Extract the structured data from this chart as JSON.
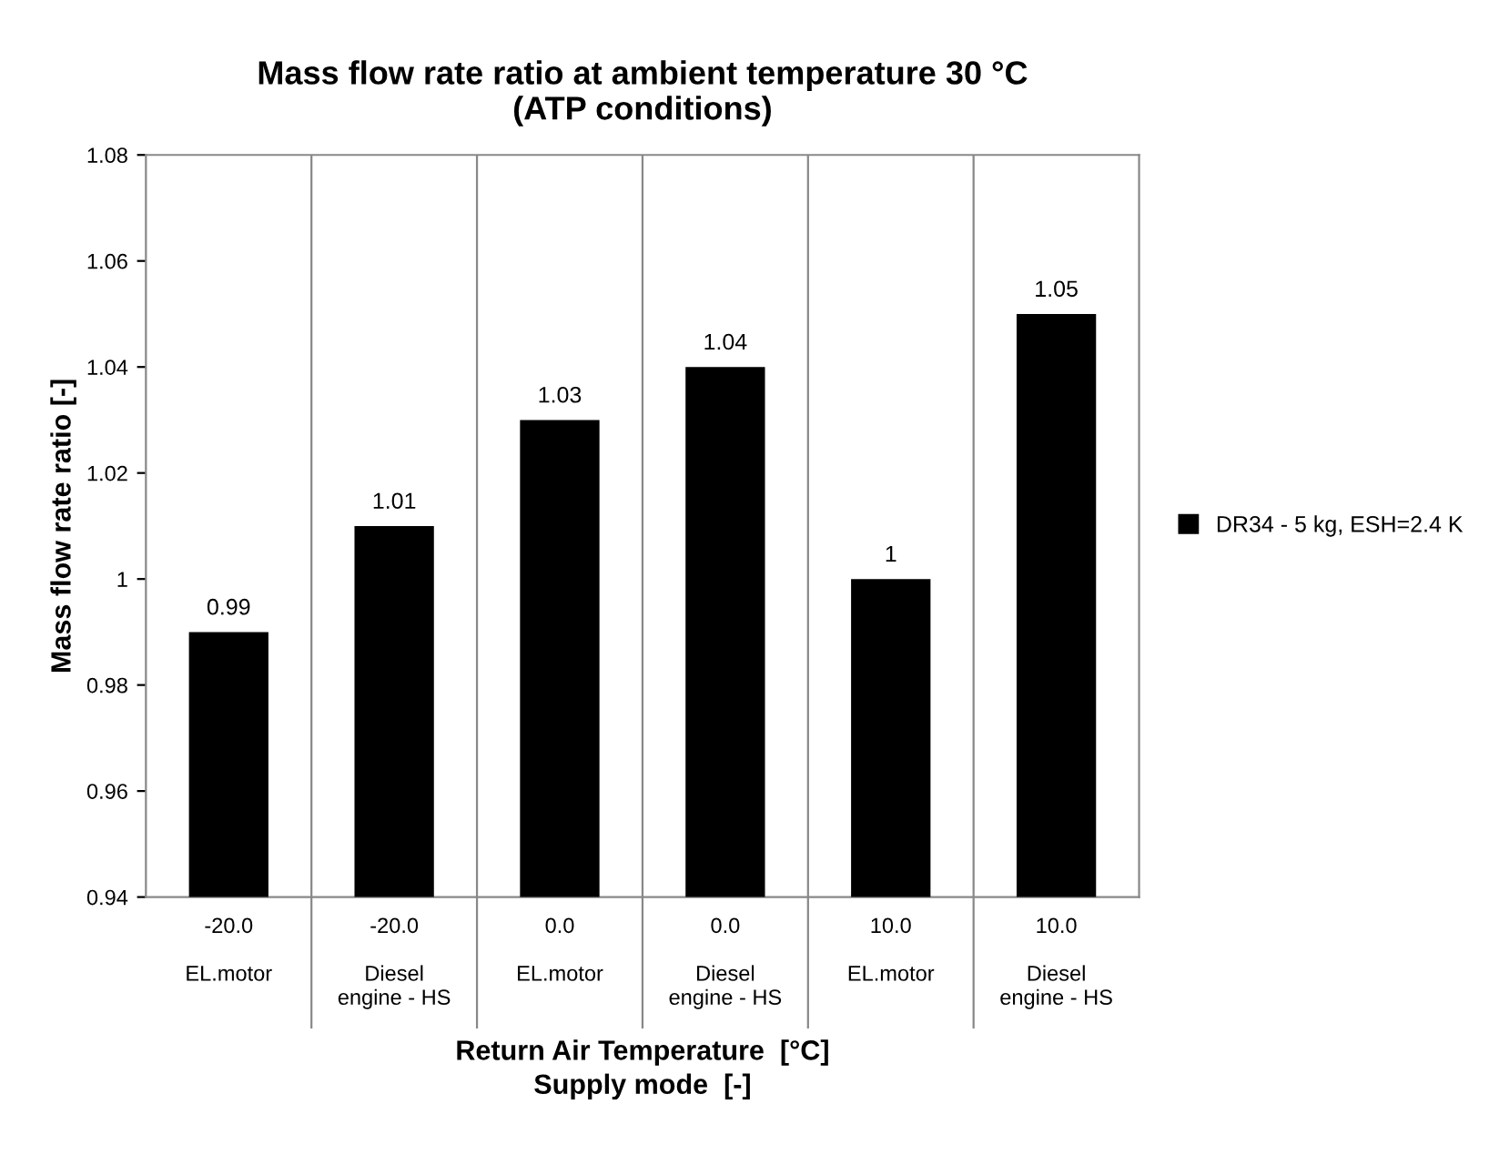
{
  "chart_data": {
    "type": "bar",
    "title": "Mass flow rate ratio at ambient temperature 30 °C\n(ATP conditions)",
    "categories": [
      "-20.0\n\nEL.motor",
      "-20.0\n\nDiesel\nengine - HS",
      "0.0\n\nEL.motor",
      "0.0\n\nDiesel\nengine - HS",
      "10.0\n\nEL.motor",
      "10.0\n\nDiesel\nengine - HS"
    ],
    "series": [
      {
        "name": "DR34 - 5 kg, ESH=2.4 K",
        "color": "#000000",
        "values": [
          0.99,
          1.01,
          1.03,
          1.04,
          1,
          1.05
        ]
      }
    ],
    "xlabel": "Return Air Temperature  [°C]\nSupply mode  [-]",
    "ylabel": "Mass flow rate ratio [-]",
    "ylim": [
      0.94,
      1.08
    ],
    "yticks": [
      0.94,
      0.96,
      0.98,
      1,
      1.02,
      1.04,
      1.06,
      1.08
    ],
    "data_labels": true,
    "grid": "x",
    "legend": "right"
  }
}
